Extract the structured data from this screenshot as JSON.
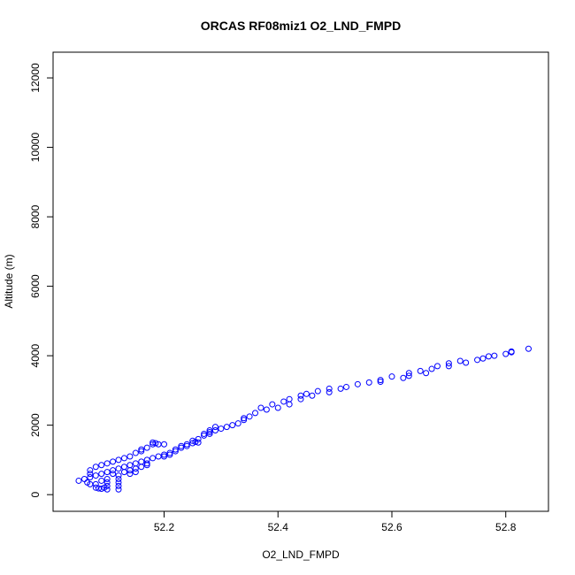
{
  "chart_data": {
    "type": "scatter",
    "title": "ORCAS RF08miz1 O2_LND_FMPD",
    "x_label": "O2_LND_FMPD",
    "y_label": "Altitude (m)",
    "color": "#0000ff",
    "x": [
      52.84,
      52.81,
      52.81,
      52.8,
      52.78,
      52.77,
      52.76,
      52.75,
      52.73,
      52.72,
      52.7,
      52.7,
      52.68,
      52.67,
      52.66,
      52.65,
      52.63,
      52.63,
      52.62,
      52.6,
      52.58,
      52.58,
      52.56,
      52.54,
      52.52,
      52.51,
      52.49,
      52.49,
      52.47,
      52.46,
      52.45,
      52.44,
      52.44,
      52.42,
      52.42,
      52.41,
      52.4,
      52.39,
      52.38,
      52.37,
      52.36,
      52.35,
      52.34,
      52.34,
      52.33,
      52.32,
      52.31,
      52.3,
      52.29,
      52.28,
      52.28,
      52.27,
      52.26,
      52.25,
      52.24,
      52.23,
      52.22,
      52.21,
      52.2,
      52.19,
      52.18,
      52.17,
      52.16,
      52.15,
      52.14,
      52.13,
      52.12,
      52.11,
      52.1,
      52.09,
      52.08,
      52.07,
      52.06,
      52.05,
      52.29,
      52.28,
      52.27,
      52.26,
      52.25,
      52.255,
      52.24,
      52.23,
      52.22,
      52.21,
      52.2,
      52.18,
      52.18,
      52.185,
      52.19,
      52.17,
      52.16,
      52.15,
      52.14,
      52.13,
      52.12,
      52.11,
      52.1,
      52.09,
      52.08,
      52.07,
      52.07,
      52.065,
      52.07,
      52.08,
      52.085,
      52.09,
      52.095,
      52.1,
      52.1,
      52.1,
      52.1,
      52.12,
      52.12,
      52.12,
      52.12,
      52.12,
      52.13,
      52.14,
      52.15,
      52.16,
      52.17,
      52.09,
      52.08,
      52.11,
      52.14,
      52.15,
      52.2,
      52.17,
      52.16
    ],
    "y": [
      4200,
      4120,
      4100,
      4050,
      4000,
      3980,
      3920,
      3880,
      3800,
      3850,
      3780,
      3700,
      3700,
      3620,
      3500,
      3560,
      3500,
      3420,
      3360,
      3400,
      3300,
      3250,
      3230,
      3180,
      3100,
      3050,
      3050,
      2950,
      2980,
      2850,
      2900,
      2750,
      2850,
      2750,
      2600,
      2680,
      2500,
      2600,
      2450,
      2500,
      2350,
      2250,
      2200,
      2150,
      2050,
      2000,
      1950,
      1900,
      1850,
      1800,
      1750,
      1700,
      1600,
      1550,
      1450,
      1400,
      1300,
      1200,
      1150,
      1100,
      1050,
      1000,
      950,
      900,
      850,
      800,
      750,
      700,
      650,
      600,
      550,
      500,
      450,
      400,
      1950,
      1850,
      1750,
      1500,
      1480,
      1520,
      1400,
      1350,
      1250,
      1150,
      1100,
      1450,
      1500,
      1480,
      1450,
      1350,
      1300,
      1200,
      1100,
      1050,
      1000,
      950,
      900,
      850,
      800,
      700,
      600,
      350,
      300,
      200,
      180,
      170,
      200,
      150,
      250,
      350,
      450,
      150,
      250,
      350,
      450,
      550,
      650,
      700,
      750,
      800,
      850,
      400,
      300,
      600,
      600,
      650,
      1450,
      900,
      1250
    ],
    "xlim": [
      52.005,
      52.875
    ],
    "ylim": [
      -480,
      12740
    ],
    "xticks": [
      52.2,
      52.4,
      52.6,
      52.8
    ],
    "yticks": [
      0,
      2000,
      4000,
      6000,
      8000,
      10000,
      12000
    ]
  }
}
